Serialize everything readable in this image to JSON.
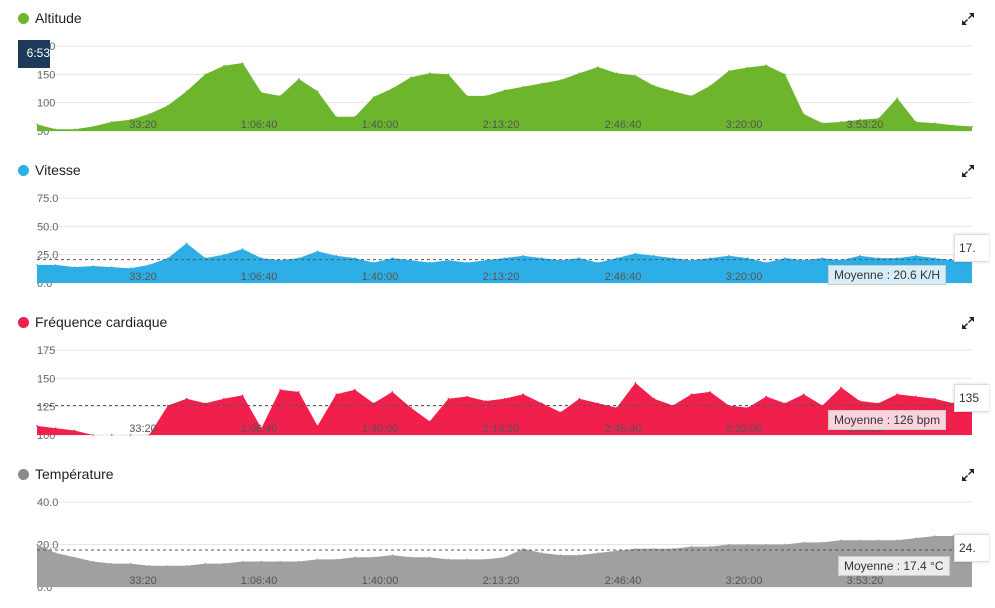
{
  "x_ticks": [
    "33:20",
    "1:06:40",
    "1:40:00",
    "2:13:20",
    "2:46:40",
    "3:20:00",
    "3:53:20"
  ],
  "cursor_time": "6:53",
  "chart_data": [
    {
      "type": "area",
      "title": "Altitude",
      "color": "#6cb52d",
      "yticks": [
        "200",
        "150",
        "100",
        "50"
      ],
      "ylim": [
        50,
        200
      ],
      "average_label": "",
      "end_value": "",
      "x": [
        0,
        2,
        4,
        6,
        8,
        10,
        12,
        14,
        16,
        18,
        20,
        22,
        24,
        26,
        28,
        30,
        32,
        34,
        36,
        38,
        40,
        42,
        44,
        46,
        48,
        50,
        52,
        54,
        56,
        58,
        60,
        62,
        64,
        66,
        68,
        70,
        72,
        74,
        76,
        78,
        80,
        82,
        84,
        86,
        88,
        90,
        92,
        94,
        96,
        98,
        100
      ],
      "values": [
        62,
        53,
        53,
        58,
        66,
        70,
        80,
        95,
        120,
        150,
        165,
        170,
        118,
        112,
        142,
        120,
        75,
        75,
        110,
        125,
        145,
        152,
        150,
        112,
        112,
        122,
        128,
        134,
        140,
        152,
        163,
        152,
        148,
        130,
        120,
        112,
        130,
        156,
        162,
        166,
        150,
        80,
        64,
        66,
        70,
        72,
        108,
        66,
        64,
        60,
        58
      ]
    },
    {
      "type": "area",
      "title": "Vitesse",
      "color": "#2eaee6",
      "yticks": [
        "75.0",
        "50.0",
        "25.0",
        "0.0"
      ],
      "ylim": [
        0,
        90
      ],
      "average": 20.6,
      "average_label": "Moyenne : 20.6 K/H",
      "end_value": "17.",
      "x": [
        0,
        2,
        4,
        6,
        8,
        10,
        12,
        14,
        16,
        18,
        20,
        22,
        24,
        26,
        28,
        30,
        32,
        34,
        36,
        38,
        40,
        42,
        44,
        46,
        48,
        50,
        52,
        54,
        56,
        58,
        60,
        62,
        64,
        66,
        68,
        70,
        72,
        74,
        76,
        78,
        80,
        82,
        84,
        86,
        88,
        90,
        92,
        94,
        96,
        98,
        100
      ],
      "values": [
        16,
        16,
        14,
        15,
        14,
        13,
        16,
        22,
        35,
        22,
        25,
        30,
        22,
        20,
        22,
        28,
        24,
        22,
        18,
        22,
        20,
        18,
        20,
        18,
        20,
        22,
        24,
        22,
        20,
        22,
        18,
        22,
        26,
        24,
        22,
        20,
        22,
        24,
        22,
        18,
        22,
        20,
        22,
        20,
        24,
        22,
        22,
        24,
        22,
        20,
        22
      ]
    },
    {
      "type": "area",
      "title": "Fréquence cardiaque",
      "color": "#f01f4b",
      "yticks": [
        "175",
        "150",
        "125",
        "100"
      ],
      "ylim": [
        100,
        190
      ],
      "average": 126,
      "average_label": "Moyenne : 126 bpm",
      "end_value": "135",
      "x": [
        0,
        2,
        4,
        6,
        8,
        10,
        12,
        14,
        16,
        18,
        20,
        22,
        24,
        26,
        28,
        30,
        32,
        34,
        36,
        38,
        40,
        42,
        44,
        46,
        48,
        50,
        52,
        54,
        56,
        58,
        60,
        62,
        64,
        66,
        68,
        70,
        72,
        74,
        76,
        78,
        80,
        82,
        84,
        86,
        88,
        90,
        92,
        94,
        96,
        98,
        100
      ],
      "values": [
        108,
        106,
        104,
        100,
        100,
        100,
        100,
        126,
        132,
        128,
        132,
        135,
        106,
        140,
        138,
        108,
        136,
        140,
        128,
        138,
        124,
        112,
        132,
        134,
        130,
        132,
        136,
        128,
        120,
        132,
        128,
        124,
        146,
        132,
        126,
        136,
        138,
        126,
        124,
        134,
        128,
        136,
        126,
        142,
        130,
        128,
        136,
        134,
        132,
        128,
        132
      ]
    },
    {
      "type": "area",
      "title": "Température",
      "color": "#a0a0a0",
      "yticks": [
        "40.0",
        "20.0",
        "0.0"
      ],
      "ylim": [
        0,
        40
      ],
      "average": 17.4,
      "average_label": "Moyenne : 17.4 °C",
      "end_value": "24.",
      "x": [
        0,
        2,
        4,
        6,
        8,
        10,
        12,
        14,
        16,
        18,
        20,
        22,
        24,
        26,
        28,
        30,
        32,
        34,
        36,
        38,
        40,
        42,
        44,
        46,
        48,
        50,
        52,
        54,
        56,
        58,
        60,
        62,
        64,
        66,
        68,
        70,
        72,
        74,
        76,
        78,
        80,
        82,
        84,
        86,
        88,
        90,
        92,
        94,
        96,
        98,
        100
      ],
      "values": [
        20,
        16,
        14,
        12,
        11,
        11,
        10,
        10,
        10,
        11,
        11,
        12,
        12,
        12,
        12,
        13,
        13,
        14,
        14,
        15,
        14,
        14,
        13,
        13,
        13,
        14,
        18,
        16,
        15,
        15,
        16,
        17,
        18,
        18,
        18,
        19,
        19,
        20,
        20,
        20,
        20,
        21,
        21,
        22,
        22,
        22,
        22,
        23,
        24,
        24,
        23
      ]
    }
  ]
}
